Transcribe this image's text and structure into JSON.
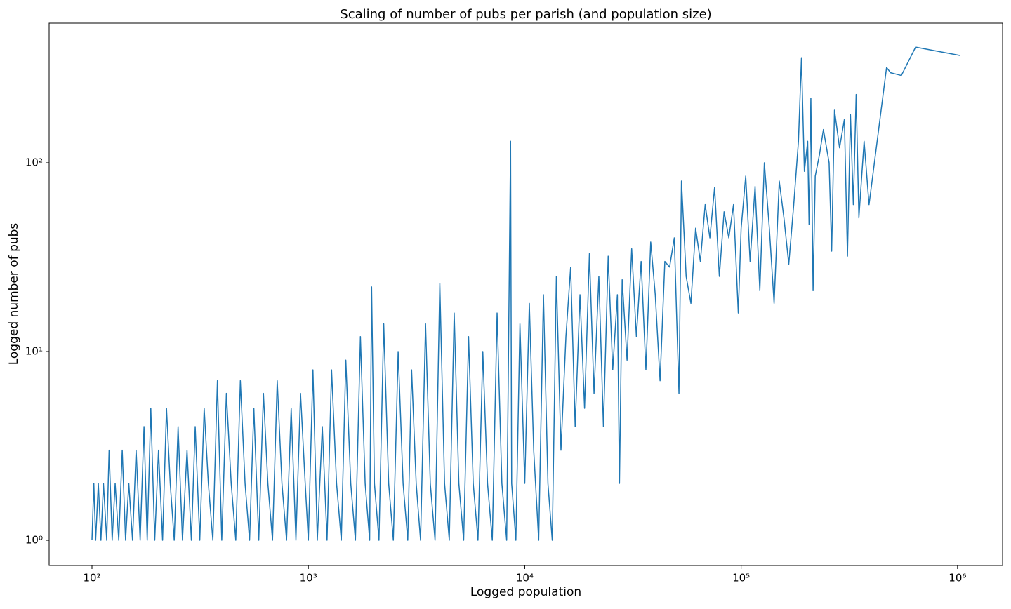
{
  "chart_data": {
    "type": "line",
    "title": "Scaling of number of pubs per parish (and population size)",
    "x_label": "Logged population",
    "y_label": "Logged number of pubs",
    "color": "#1f77b4",
    "xscale": "log",
    "yscale": "log",
    "grid": false,
    "xlim": [
      63.4,
      1615000
    ],
    "ylim": [
      0.735,
      549
    ],
    "xticks": [
      {
        "value": 100,
        "label": "10²"
      },
      {
        "value": 1000,
        "label": "10³"
      },
      {
        "value": 10000,
        "label": "10⁴"
      },
      {
        "value": 100000,
        "label": "10⁵"
      },
      {
        "value": 1000000,
        "label": "10⁶"
      }
    ],
    "yticks": [
      {
        "value": 1,
        "label": "10⁰"
      },
      {
        "value": 10,
        "label": "10¹"
      },
      {
        "value": 100,
        "label": "10²"
      }
    ],
    "x": [
      100,
      102,
      104,
      107,
      110,
      113,
      117,
      120,
      124,
      128,
      133,
      138,
      143,
      148,
      154,
      160,
      167,
      174,
      180,
      187,
      195,
      203,
      212,
      221,
      230,
      240,
      250,
      262,
      275,
      288,
      300,
      315,
      330,
      345,
      362,
      380,
      398,
      418,
      440,
      462,
      485,
      510,
      535,
      560,
      590,
      620,
      650,
      683,
      718,
      755,
      793,
      833,
      876,
      920,
      967,
      1000,
      1050,
      1100,
      1160,
      1220,
      1280,
      1350,
      1420,
      1490,
      1570,
      1650,
      1740,
      1830,
      1920,
      1960,
      2020,
      2120,
      2230,
      2350,
      2470,
      2600,
      2740,
      2880,
      3000,
      3150,
      3300,
      3480,
      3660,
      3850,
      4050,
      4260,
      4480,
      4720,
      4960,
      5220,
      5500,
      5780,
      6080,
      6400,
      6730,
      7080,
      7450,
      7840,
      8250,
      8600,
      8700,
      9100,
      9500,
      10000,
      10500,
      11000,
      11600,
      12200,
      12800,
      13400,
      14000,
      14700,
      15500,
      16300,
      17100,
      18000,
      18900,
      19900,
      20900,
      22000,
      23100,
      24300,
      25500,
      26800,
      27400,
      28200,
      29700,
      31200,
      32800,
      34500,
      36300,
      38200,
      40100,
      42200,
      44400,
      46700,
      49100,
      51600,
      53000,
      55700,
      58600,
      61600,
      64800,
      68200,
      71700,
      75400,
      79300,
      83400,
      87700,
      92200,
      97000,
      100000,
      105000,
      110000,
      116000,
      122000,
      128000,
      135000,
      142000,
      150000,
      158000,
      166000,
      175000,
      184000,
      190000,
      196000,
      203000,
      206000,
      210000,
      215000,
      220000,
      230000,
      240000,
      255000,
      262000,
      270000,
      285000,
      300000,
      310000,
      320000,
      330000,
      340000,
      350000,
      370000,
      390000,
      470000,
      490000,
      550000,
      640000,
      1030000
    ],
    "values": [
      1,
      2,
      1,
      2,
      1,
      2,
      1,
      3,
      1,
      2,
      1,
      3,
      1,
      2,
      1,
      3,
      1,
      4,
      1,
      5,
      1,
      3,
      1,
      5,
      2,
      1,
      4,
      1,
      3,
      1,
      4,
      1,
      5,
      2,
      1,
      7,
      1,
      6,
      2,
      1,
      7,
      2,
      1,
      5,
      1,
      6,
      2,
      1,
      7,
      2,
      1,
      5,
      1,
      6,
      2,
      1,
      8,
      1,
      4,
      1,
      8,
      2,
      1,
      9,
      2,
      1,
      12,
      2,
      1,
      22,
      2,
      1,
      14,
      2,
      1,
      10,
      2,
      1,
      8,
      2,
      1,
      14,
      2,
      1,
      23,
      2,
      1,
      16,
      2,
      1,
      12,
      2,
      1,
      10,
      2,
      1,
      16,
      2,
      1,
      130,
      2,
      1,
      14,
      2,
      18,
      3,
      1,
      20,
      2,
      1,
      25,
      3,
      12,
      28,
      4,
      20,
      5,
      33,
      6,
      25,
      4,
      32,
      8,
      20,
      2,
      24,
      9,
      35,
      12,
      30,
      8,
      38,
      20,
      7,
      30,
      28,
      40,
      6,
      80,
      25,
      18,
      45,
      30,
      60,
      40,
      74,
      25,
      55,
      40,
      60,
      16,
      45,
      85,
      30,
      75,
      21,
      100,
      45,
      18,
      80,
      50,
      29,
      60,
      130,
      360,
      90,
      130,
      47,
      220,
      21,
      85,
      110,
      150,
      100,
      34,
      190,
      120,
      170,
      32,
      180,
      60,
      230,
      51,
      130,
      60,
      320,
      300,
      290,
      410,
      370
    ]
  }
}
